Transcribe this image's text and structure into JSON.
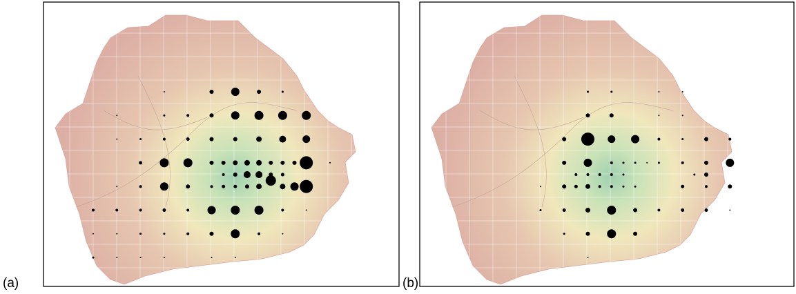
{
  "panels": [
    {
      "label": "(a)",
      "points": [
        {
          "col": 3,
          "row": 0,
          "size": 1
        },
        {
          "col": 5,
          "row": 0,
          "size": 3
        },
        {
          "col": 6,
          "row": 0,
          "size": 6
        },
        {
          "col": 7,
          "row": 0,
          "size": 3
        },
        {
          "col": 8,
          "row": 0,
          "size": 1.5
        },
        {
          "col": 1,
          "row": 1,
          "size": 1
        },
        {
          "col": 3,
          "row": 1,
          "size": 1.5
        },
        {
          "col": 4,
          "row": 1,
          "size": 2
        },
        {
          "col": 5,
          "row": 1,
          "size": 3
        },
        {
          "col": 6,
          "row": 1,
          "size": 6
        },
        {
          "col": 7,
          "row": 1,
          "size": 6.5
        },
        {
          "col": 8,
          "row": 1,
          "size": 6.5
        },
        {
          "col": 9,
          "row": 1,
          "size": 6.5
        },
        {
          "col": 1,
          "row": 2,
          "size": 1
        },
        {
          "col": 2,
          "row": 2,
          "size": 1.5
        },
        {
          "col": 3,
          "row": 2,
          "size": 2
        },
        {
          "col": 4,
          "row": 2,
          "size": 2.5
        },
        {
          "col": 5,
          "row": 2,
          "size": 3
        },
        {
          "col": 6,
          "row": 2,
          "size": 3
        },
        {
          "col": 7,
          "row": 2,
          "size": 4
        },
        {
          "col": 8,
          "row": 2,
          "size": 5
        },
        {
          "col": 9,
          "row": 2,
          "size": 5.5
        },
        {
          "col": 2,
          "row": 3,
          "size": 2.5
        },
        {
          "col": 3,
          "row": 3,
          "size": 6.5
        },
        {
          "col": 4,
          "row": 3,
          "size": 6.5
        },
        {
          "col": 5,
          "row": 3,
          "size": 3
        },
        {
          "col": 5.5,
          "row": 3,
          "size": 3
        },
        {
          "col": 6,
          "row": 3,
          "size": 3.5
        },
        {
          "col": 6.5,
          "row": 3,
          "size": 4
        },
        {
          "col": 7,
          "row": 3,
          "size": 4
        },
        {
          "col": 7.5,
          "row": 3,
          "size": 3
        },
        {
          "col": 8,
          "row": 3,
          "size": 3
        },
        {
          "col": 8.5,
          "row": 3,
          "size": 3
        },
        {
          "col": 9,
          "row": 3,
          "size": 9.5
        },
        {
          "col": 10,
          "row": 3,
          "size": 1
        },
        {
          "col": 5.5,
          "row": 3.5,
          "size": 2
        },
        {
          "col": 6,
          "row": 3.5,
          "size": 3
        },
        {
          "col": 6.5,
          "row": 3.5,
          "size": 5
        },
        {
          "col": 7,
          "row": 3.5,
          "size": 5
        },
        {
          "col": 7.5,
          "row": 3.5,
          "size": 3
        },
        {
          "col": 8,
          "row": 3.5,
          "size": 2.5
        },
        {
          "col": 1,
          "row": 4,
          "size": 1
        },
        {
          "col": 2,
          "row": 4,
          "size": 2
        },
        {
          "col": 3,
          "row": 4,
          "size": 6
        },
        {
          "col": 4,
          "row": 4,
          "size": 3
        },
        {
          "col": 5,
          "row": 4,
          "size": 2
        },
        {
          "col": 5.5,
          "row": 4,
          "size": 2.5
        },
        {
          "col": 6,
          "row": 4,
          "size": 2.5
        },
        {
          "col": 6.5,
          "row": 4,
          "size": 3
        },
        {
          "col": 7,
          "row": 4,
          "size": 4
        },
        {
          "col": 7.5,
          "row": 3.75,
          "size": 7.5
        },
        {
          "col": 8,
          "row": 4,
          "size": 4
        },
        {
          "col": 8.5,
          "row": 4,
          "size": 6
        },
        {
          "col": 9,
          "row": 4,
          "size": 9.5
        },
        {
          "col": 0,
          "row": 5,
          "size": 2
        },
        {
          "col": 1,
          "row": 5,
          "size": 2
        },
        {
          "col": 2,
          "row": 5,
          "size": 2
        },
        {
          "col": 3,
          "row": 5,
          "size": 2.5
        },
        {
          "col": 4,
          "row": 5,
          "size": 2
        },
        {
          "col": 5,
          "row": 5,
          "size": 6
        },
        {
          "col": 6,
          "row": 5,
          "size": 6.5
        },
        {
          "col": 7,
          "row": 5,
          "size": 6.5
        },
        {
          "col": 8,
          "row": 5,
          "size": 2
        },
        {
          "col": 9,
          "row": 5,
          "size": 1
        },
        {
          "col": 0,
          "row": 6,
          "size": 1
        },
        {
          "col": 1,
          "row": 6,
          "size": 1
        },
        {
          "col": 2,
          "row": 6,
          "size": 1.5
        },
        {
          "col": 3,
          "row": 6,
          "size": 1.5
        },
        {
          "col": 4,
          "row": 6,
          "size": 2
        },
        {
          "col": 5,
          "row": 6,
          "size": 3
        },
        {
          "col": 6,
          "row": 6,
          "size": 6.5
        },
        {
          "col": 7,
          "row": 6,
          "size": 2
        },
        {
          "col": 8,
          "row": 6,
          "size": 1
        },
        {
          "col": 0,
          "row": 7,
          "size": 1.5
        },
        {
          "col": 1,
          "row": 7,
          "size": 1
        },
        {
          "col": 2,
          "row": 7,
          "size": 1
        },
        {
          "col": 3,
          "row": 7,
          "size": 1
        },
        {
          "col": 5,
          "row": 7,
          "size": 1
        },
        {
          "col": 6,
          "row": 7,
          "size": 1
        }
      ]
    },
    {
      "label": "(b)",
      "points": [
        {
          "col": 5,
          "row": 0,
          "size": 1.5
        },
        {
          "col": 6,
          "row": 0,
          "size": 1.5
        },
        {
          "col": 8,
          "row": 0,
          "size": 1
        },
        {
          "col": 9,
          "row": 0,
          "size": 1
        },
        {
          "col": 5,
          "row": 1,
          "size": 3
        },
        {
          "col": 6,
          "row": 1,
          "size": 3
        },
        {
          "col": 8,
          "row": 1,
          "size": 1
        },
        {
          "col": 9,
          "row": 1,
          "size": 1
        },
        {
          "col": 4,
          "row": 2,
          "size": 3
        },
        {
          "col": 5,
          "row": 2,
          "size": 9.5
        },
        {
          "col": 6,
          "row": 2,
          "size": 5.5
        },
        {
          "col": 7,
          "row": 2,
          "size": 6
        },
        {
          "col": 8,
          "row": 2,
          "size": 2
        },
        {
          "col": 9,
          "row": 2,
          "size": 1.5
        },
        {
          "col": 10,
          "row": 2,
          "size": 3
        },
        {
          "col": 11,
          "row": 2,
          "size": 2
        },
        {
          "col": 4,
          "row": 3,
          "size": 3
        },
        {
          "col": 5,
          "row": 3,
          "size": 6
        },
        {
          "col": 6,
          "row": 3,
          "size": 2
        },
        {
          "col": 6.5,
          "row": 3,
          "size": 1.5
        },
        {
          "col": 7,
          "row": 3,
          "size": 1.5
        },
        {
          "col": 7.5,
          "row": 3,
          "size": 1
        },
        {
          "col": 8,
          "row": 3,
          "size": 1.5
        },
        {
          "col": 9,
          "row": 3,
          "size": 2
        },
        {
          "col": 10,
          "row": 3,
          "size": 3
        },
        {
          "col": 11,
          "row": 3,
          "size": 6
        },
        {
          "col": 4.5,
          "row": 3.5,
          "size": 2
        },
        {
          "col": 5,
          "row": 3.5,
          "size": 2
        },
        {
          "col": 5.5,
          "row": 3.5,
          "size": 2
        },
        {
          "col": 6,
          "row": 3.5,
          "size": 2
        },
        {
          "col": 6.5,
          "row": 3.5,
          "size": 1.5
        },
        {
          "col": 9.5,
          "row": 3.5,
          "size": 1.5
        },
        {
          "col": 10,
          "row": 3.5,
          "size": 3
        },
        {
          "col": 3,
          "row": 4,
          "size": 1
        },
        {
          "col": 4,
          "row": 4,
          "size": 3
        },
        {
          "col": 4.5,
          "row": 4,
          "size": 2.5
        },
        {
          "col": 5,
          "row": 4,
          "size": 3.5
        },
        {
          "col": 5.5,
          "row": 4,
          "size": 2
        },
        {
          "col": 6,
          "row": 4,
          "size": 2
        },
        {
          "col": 6.5,
          "row": 4,
          "size": 1.5
        },
        {
          "col": 7,
          "row": 4,
          "size": 1.5
        },
        {
          "col": 9,
          "row": 4,
          "size": 2.5
        },
        {
          "col": 10,
          "row": 4,
          "size": 2
        },
        {
          "col": 11,
          "row": 4,
          "size": 3
        },
        {
          "col": 3,
          "row": 5,
          "size": 1.5
        },
        {
          "col": 4,
          "row": 5,
          "size": 2.5
        },
        {
          "col": 5,
          "row": 5,
          "size": 3.5
        },
        {
          "col": 6,
          "row": 5,
          "size": 6.5
        },
        {
          "col": 7,
          "row": 5,
          "size": 3
        },
        {
          "col": 8,
          "row": 5,
          "size": 2
        },
        {
          "col": 9,
          "row": 5,
          "size": 2.5
        },
        {
          "col": 10,
          "row": 5,
          "size": 2.5
        },
        {
          "col": 11,
          "row": 5,
          "size": 1
        },
        {
          "col": 4,
          "row": 6,
          "size": 1.5
        },
        {
          "col": 5,
          "row": 6,
          "size": 3
        },
        {
          "col": 6,
          "row": 6,
          "size": 6.5
        },
        {
          "col": 7,
          "row": 6,
          "size": 3
        },
        {
          "col": 5,
          "row": 7,
          "size": 1
        }
      ]
    }
  ]
}
